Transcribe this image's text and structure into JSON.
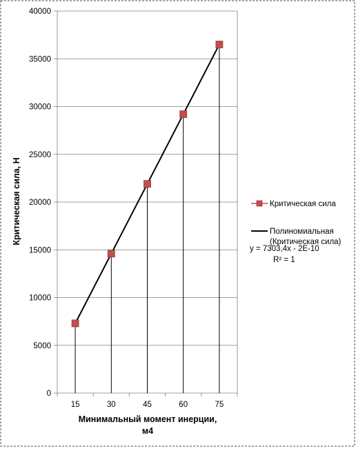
{
  "chart_data": {
    "type": "scatter",
    "xlabel": "Минимальный момент инерции,",
    "xlabel_line2": "м4",
    "ylabel": "Критическая сила, Н",
    "categories": [
      "15",
      "30",
      "45",
      "60",
      "75"
    ],
    "x": [
      15,
      30,
      45,
      60,
      75
    ],
    "ylim": [
      0,
      40000
    ],
    "yticks": [
      "0",
      "5000",
      "10000",
      "15000",
      "20000",
      "25000",
      "30000",
      "35000",
      "40000"
    ],
    "grid": true,
    "legend_position": "right",
    "series": [
      {
        "name": "Критическая сила",
        "kind": "markers",
        "color": "#c0504d",
        "values": [
          7300,
          14600,
          21900,
          29200,
          36500
        ]
      },
      {
        "name": "Полиномиальная (Критическая сила)",
        "kind": "trendline",
        "color": "#000000",
        "values": [
          7300,
          14600,
          21900,
          29200,
          36500
        ]
      }
    ],
    "trendline_equation": "y = 7303,4x - 2E-10",
    "trendline_r2": "R² = 1"
  }
}
